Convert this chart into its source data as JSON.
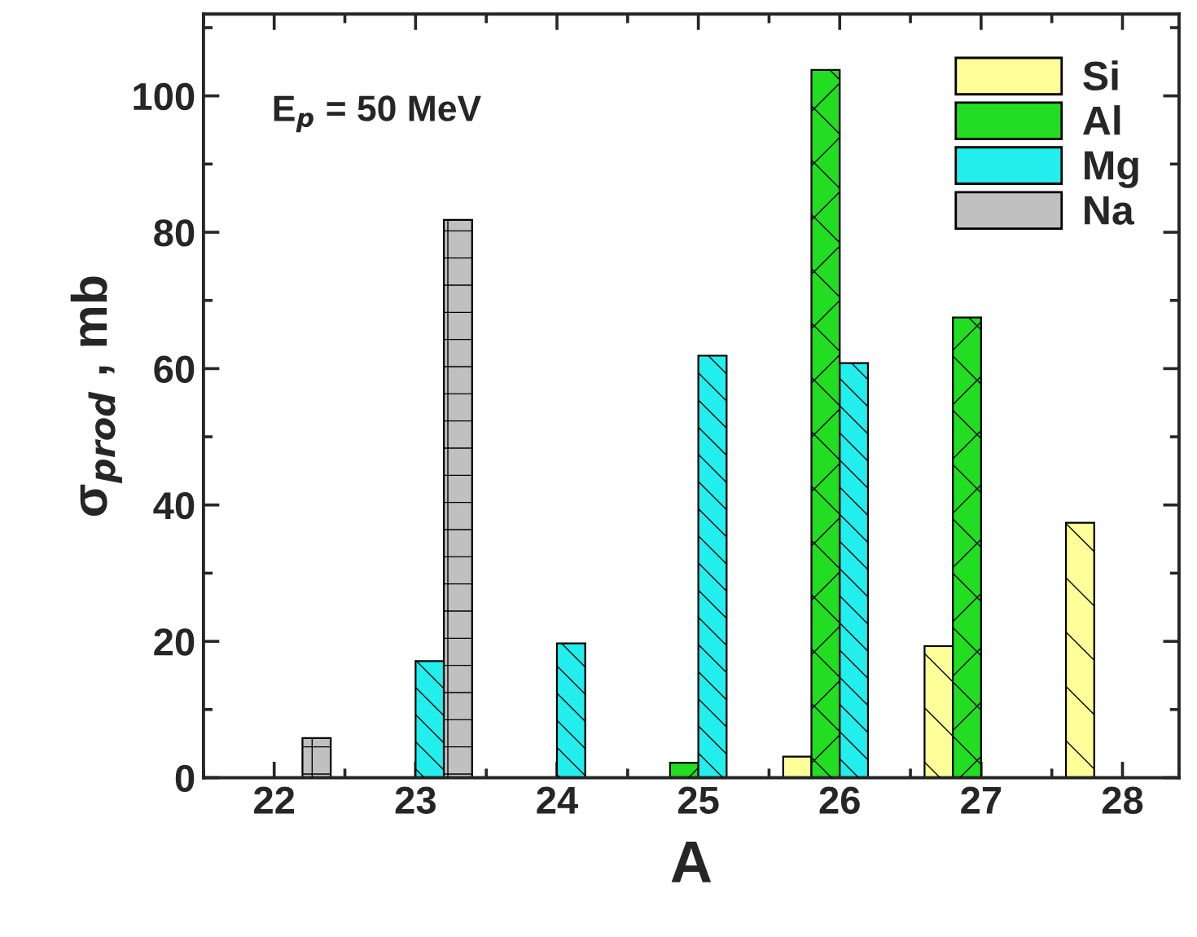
{
  "chart_data": {
    "type": "bar",
    "xlabel": "A",
    "ylabel": "σ$_{prod}$ , mb",
    "annotations": [
      "E$_{p}$ = 50 MeV"
    ],
    "xlim": [
      21.5,
      28.4
    ],
    "xticks": [
      22,
      23,
      24,
      25,
      26,
      27,
      28
    ],
    "ylim": [
      0,
      112
    ],
    "yticks": [
      0,
      20,
      40,
      60,
      80,
      100
    ],
    "legend": "top right",
    "grid": false,
    "series": [
      {
        "name": "Si",
        "color": "#ffff99",
        "x": [
          25.7,
          26.7,
          27.7
        ],
        "values": [
          3.1,
          19.3,
          37.4
        ]
      },
      {
        "name": "Al",
        "color": "#22dd22",
        "x": [
          24.9,
          25.9,
          26.9
        ],
        "values": [
          2.2,
          103.8,
          67.5
        ]
      },
      {
        "name": "Mg",
        "color": "#22eeee",
        "x": [
          23.1,
          24.1,
          25.1,
          26.1
        ],
        "values": [
          17.1,
          19.7,
          61.9,
          60.8
        ]
      },
      {
        "name": "Na",
        "color": "#c0c0c0",
        "x": [
          22.3,
          23.3
        ],
        "values": [
          5.8,
          81.8
        ]
      }
    ]
  }
}
